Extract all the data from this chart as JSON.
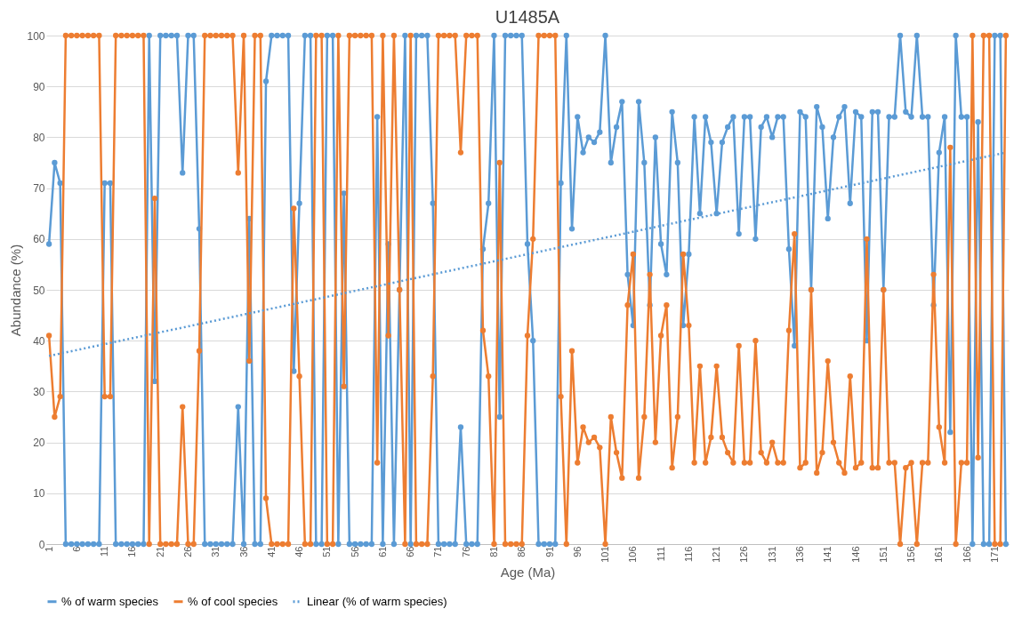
{
  "chart_data": {
    "type": "line",
    "title": "U1485A",
    "xlabel": "Age (Ma)",
    "ylabel": "Abundance (%)",
    "x": [
      1,
      2,
      3,
      4,
      5,
      6,
      7,
      8,
      9,
      10,
      11,
      12,
      13,
      14,
      15,
      16,
      17,
      18,
      19,
      20,
      21,
      22,
      23,
      24,
      25,
      26,
      27,
      28,
      29,
      30,
      31,
      32,
      33,
      34,
      35,
      36,
      37,
      38,
      39,
      40,
      41,
      42,
      43,
      44,
      45,
      46,
      47,
      48,
      49,
      50,
      51,
      52,
      53,
      54,
      55,
      56,
      57,
      58,
      59,
      60,
      61,
      62,
      63,
      64,
      65,
      66,
      67,
      68,
      69,
      70,
      71,
      72,
      73,
      74,
      75,
      76,
      77,
      78,
      79,
      80,
      81,
      82,
      83,
      84,
      85,
      86,
      87,
      88,
      89,
      90,
      91,
      92,
      93,
      94,
      95,
      96,
      97,
      98,
      99,
      100,
      101,
      102,
      103,
      104,
      105,
      106,
      107,
      108,
      109,
      110,
      111,
      112,
      113,
      114,
      115,
      116,
      117,
      118,
      119,
      120,
      121,
      122,
      123,
      124,
      125,
      126,
      127,
      128,
      129,
      130,
      131,
      132,
      133,
      134,
      135,
      136,
      137,
      138,
      139,
      140,
      141,
      142,
      143,
      144,
      145,
      146,
      147,
      148,
      149,
      150,
      151,
      152,
      153,
      154,
      155,
      156,
      157,
      158,
      159,
      160,
      161,
      162,
      163,
      164,
      165,
      166,
      167,
      168,
      169,
      170,
      171,
      172,
      173
    ],
    "series": [
      {
        "name": "% of warm species",
        "color": "#5b9bd5",
        "marker": "circle",
        "line_style": "solid",
        "values": [
          59,
          75,
          71,
          0,
          0,
          0,
          0,
          0,
          0,
          0,
          71,
          71,
          0,
          0,
          0,
          0,
          0,
          0,
          100,
          32,
          100,
          100,
          100,
          100,
          73,
          100,
          100,
          62,
          0,
          0,
          0,
          0,
          0,
          0,
          27,
          0,
          64,
          0,
          0,
          91,
          100,
          100,
          100,
          100,
          34,
          67,
          100,
          100,
          0,
          0,
          100,
          100,
          0,
          69,
          0,
          0,
          0,
          0,
          0,
          84,
          0,
          59,
          0,
          50,
          100,
          0,
          100,
          100,
          100,
          67,
          0,
          0,
          0,
          0,
          23,
          0,
          0,
          0,
          58,
          67,
          100,
          25,
          100,
          100,
          100,
          100,
          59,
          40,
          0,
          0,
          0,
          0,
          71,
          100,
          62,
          84,
          77,
          80,
          79,
          81,
          100,
          75,
          82,
          87,
          53,
          43,
          87,
          75,
          47,
          80,
          59,
          53,
          85,
          75,
          43,
          57,
          84,
          65,
          84,
          79,
          65,
          79,
          82,
          84,
          61,
          84,
          84,
          60,
          82,
          84,
          80,
          84,
          84,
          58,
          39,
          85,
          84,
          50,
          86,
          82,
          64,
          80,
          84,
          86,
          67,
          85,
          84,
          40,
          85,
          85,
          50,
          84,
          84,
          100,
          85,
          84,
          100,
          84,
          84,
          47,
          77,
          84,
          22,
          100,
          84,
          84,
          0,
          83,
          0,
          0,
          100,
          100,
          0
        ]
      },
      {
        "name": "% of cool species",
        "color": "#ed7d31",
        "marker": "circle",
        "line_style": "solid",
        "values": [
          41,
          25,
          29,
          100,
          100,
          100,
          100,
          100,
          100,
          100,
          29,
          29,
          100,
          100,
          100,
          100,
          100,
          100,
          0,
          68,
          0,
          0,
          0,
          0,
          27,
          0,
          0,
          38,
          100,
          100,
          100,
          100,
          100,
          100,
          73,
          100,
          36,
          100,
          100,
          9,
          0,
          0,
          0,
          0,
          66,
          33,
          0,
          0,
          100,
          100,
          0,
          0,
          100,
          31,
          100,
          100,
          100,
          100,
          100,
          16,
          100,
          41,
          100,
          50,
          0,
          100,
          0,
          0,
          0,
          33,
          100,
          100,
          100,
          100,
          77,
          100,
          100,
          100,
          42,
          33,
          0,
          75,
          0,
          0,
          0,
          0,
          41,
          60,
          100,
          100,
          100,
          100,
          29,
          0,
          38,
          16,
          23,
          20,
          21,
          19,
          0,
          25,
          18,
          13,
          47,
          57,
          13,
          25,
          53,
          20,
          41,
          47,
          15,
          25,
          57,
          43,
          16,
          35,
          16,
          21,
          35,
          21,
          18,
          16,
          39,
          16,
          16,
          40,
          18,
          16,
          20,
          16,
          16,
          42,
          61,
          15,
          16,
          50,
          14,
          18,
          36,
          20,
          16,
          14,
          33,
          15,
          16,
          60,
          15,
          15,
          50,
          16,
          16,
          0,
          15,
          16,
          0,
          16,
          16,
          53,
          23,
          16,
          78,
          0,
          16,
          16,
          100,
          17,
          100,
          100,
          0,
          0,
          100
        ]
      },
      {
        "name": "Linear (% of warm species)",
        "color": "#5b9bd5",
        "marker": "none",
        "line_style": "dotted",
        "x": [
          1,
          173
        ],
        "values": [
          37,
          77
        ]
      }
    ],
    "xlim": [
      0.5,
      173.5
    ],
    "xticks": [
      1,
      6,
      11,
      16,
      21,
      26,
      31,
      36,
      41,
      46,
      51,
      56,
      61,
      66,
      71,
      76,
      81,
      86,
      91,
      96,
      101,
      106,
      111,
      116,
      121,
      126,
      131,
      136,
      141,
      146,
      151,
      156,
      161,
      166,
      171
    ],
    "ylim": [
      0,
      100
    ],
    "yticks": [
      0,
      10,
      20,
      30,
      40,
      50,
      60,
      70,
      80,
      90,
      100
    ],
    "grid": "y",
    "legend": "bottom"
  }
}
